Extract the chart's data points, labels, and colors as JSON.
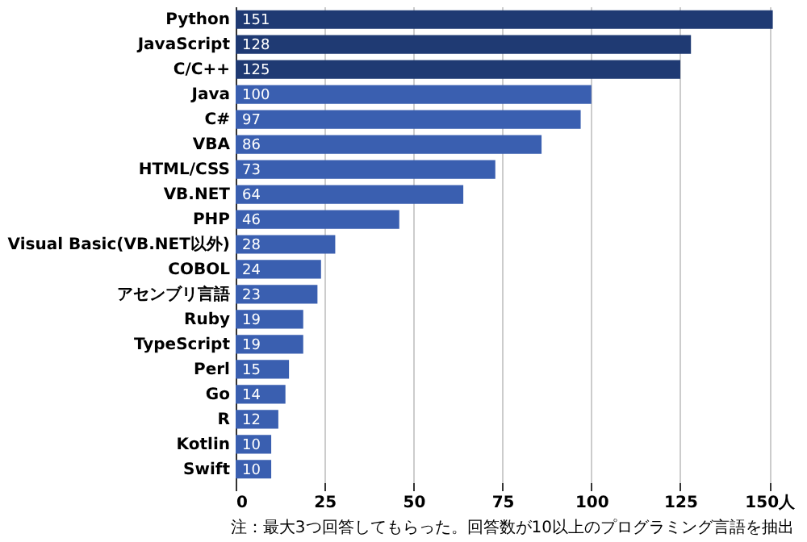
{
  "chart_data": {
    "type": "bar",
    "orientation": "horizontal",
    "categories": [
      "Python",
      "JavaScript",
      "C/C++",
      "Java",
      "C#",
      "VBA",
      "HTML/CSS",
      "VB.NET",
      "PHP",
      "Visual Basic(VB.NET以外)",
      "COBOL",
      "アセンブリ言語",
      "Ruby",
      "TypeScript",
      "Perl",
      "Go",
      "R",
      "Kotlin",
      "Swift"
    ],
    "values": [
      151,
      128,
      125,
      100,
      97,
      86,
      73,
      64,
      46,
      28,
      24,
      23,
      19,
      19,
      15,
      14,
      12,
      10,
      10
    ],
    "colors": [
      "#1f3a73",
      "#1f3a73",
      "#1f3a73",
      "#3a5fb0",
      "#3a5fb0",
      "#3a5fb0",
      "#3a5fb0",
      "#3a5fb0",
      "#3a5fb0",
      "#3a5fb0",
      "#3a5fb0",
      "#3a5fb0",
      "#3a5fb0",
      "#3a5fb0",
      "#3a5fb0",
      "#3a5fb0",
      "#3a5fb0",
      "#3a5fb0",
      "#3a5fb0"
    ],
    "xlim": [
      0,
      152
    ],
    "xticks": [
      0,
      25,
      50,
      75,
      100,
      125,
      {
        "value": 150,
        "label": "150人"
      }
    ],
    "grid": "x",
    "data_labels": true,
    "annotations": [
      "注：最大3つ回答してもらった。回答数が10以上のプログラミング言語を抽出"
    ]
  }
}
